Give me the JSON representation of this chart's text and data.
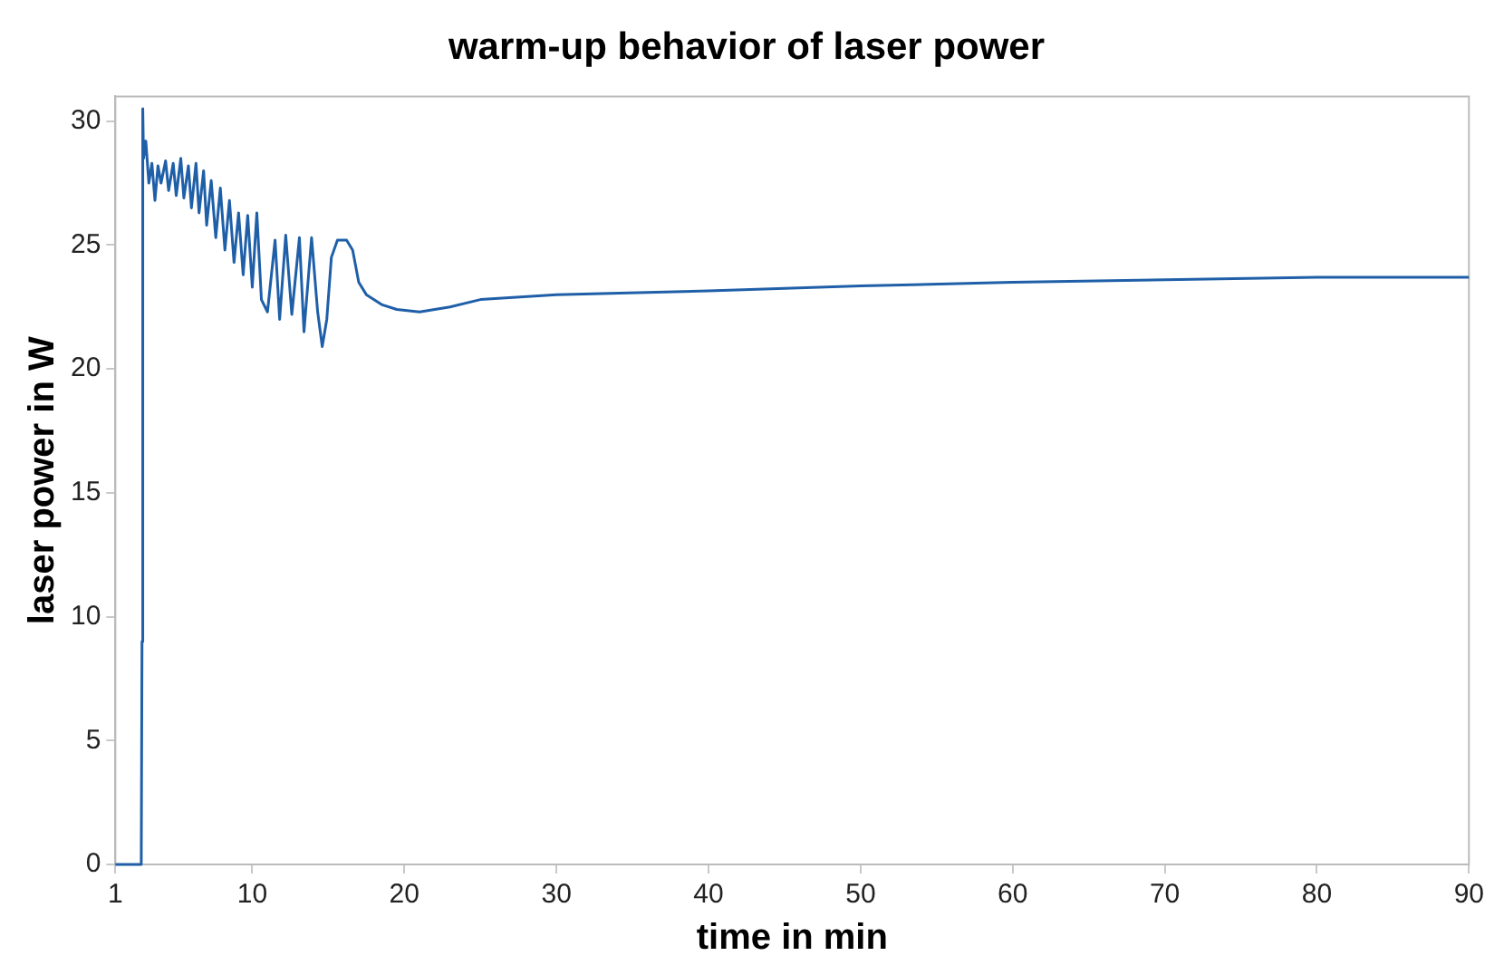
{
  "chart_data": {
    "type": "line",
    "title": "warm-up behavior of laser power",
    "xlabel": "time in min",
    "ylabel": "laser power in W",
    "x": [
      1,
      2.7,
      2.75,
      2.8,
      2.85,
      3.0,
      3.2,
      3.4,
      3.6,
      3.8,
      4.0,
      4.3,
      4.5,
      4.8,
      5.0,
      5.3,
      5.5,
      5.8,
      6.0,
      6.3,
      6.5,
      6.8,
      7.0,
      7.3,
      7.6,
      7.9,
      8.2,
      8.5,
      8.8,
      9.1,
      9.4,
      9.7,
      10.0,
      10.3,
      10.6,
      11.0,
      11.5,
      11.8,
      12.2,
      12.6,
      13.1,
      13.4,
      13.9,
      14.3,
      14.6,
      14.9,
      15.2,
      15.6,
      16.2,
      16.6,
      17.0,
      17.5,
      18.5,
      19.5,
      21,
      23,
      25,
      30,
      40,
      50,
      60,
      70,
      80,
      90
    ],
    "series": [
      {
        "color": "#1f5fa8",
        "values": [
          0,
          0,
          9,
          30.5,
          28.5,
          29.2,
          27.5,
          28.3,
          26.8,
          28.2,
          27.5,
          28.4,
          27.2,
          28.3,
          27.0,
          28.5,
          26.9,
          28.2,
          26.5,
          28.3,
          26.3,
          28.0,
          25.8,
          27.6,
          25.3,
          27.3,
          24.8,
          26.8,
          24.3,
          26.3,
          23.8,
          26.2,
          23.3,
          26.3,
          22.8,
          22.3,
          25.2,
          22.0,
          25.4,
          22.2,
          25.3,
          21.5,
          25.3,
          22.3,
          20.9,
          22.0,
          24.5,
          25.2,
          25.2,
          24.8,
          23.5,
          23.0,
          22.6,
          22.4,
          22.3,
          22.5,
          22.8,
          23.0,
          23.15,
          23.35,
          23.5,
          23.6,
          23.7,
          23.7
        ]
      }
    ],
    "xlim": [
      1,
      90
    ],
    "xticks": [
      1,
      10,
      20,
      30,
      40,
      50,
      60,
      70,
      80,
      90
    ],
    "ylim": [
      0,
      31
    ],
    "yticks": [
      0,
      5,
      10,
      15,
      20,
      25,
      30
    ],
    "grid": false,
    "legend": false,
    "marker": "none",
    "line_style": "solid"
  }
}
